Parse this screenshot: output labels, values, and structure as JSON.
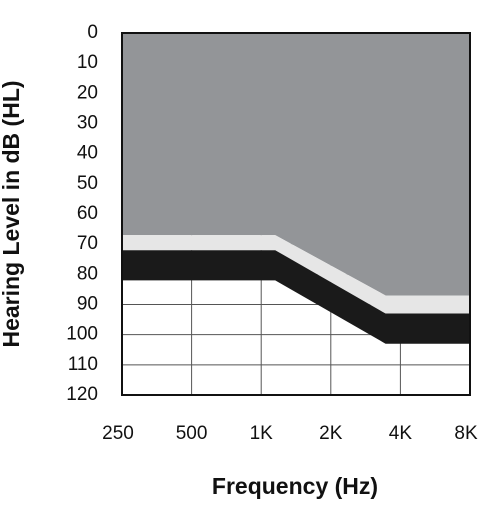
{
  "chart_data": {
    "type": "area",
    "x_label": "Frequency (Hz)",
    "y_label": "Hearing Level in dB (HL)",
    "x": [
      250,
      1150,
      3450,
      8000
    ],
    "xscale": "log",
    "xlim": [
      250,
      8000
    ],
    "xticks": [
      250,
      500,
      {
        "value": 1000,
        "label": "1K"
      },
      {
        "value": 2000,
        "label": "2K"
      },
      {
        "value": 4000,
        "label": "4K"
      },
      {
        "value": 8000,
        "label": "8K"
      }
    ],
    "ylim": [
      0,
      120
    ],
    "y_inverted": true,
    "yticks": [
      0,
      10,
      20,
      30,
      40,
      50,
      60,
      70,
      80,
      90,
      100,
      110,
      120
    ],
    "grid": true,
    "series": [
      {
        "color": "#939598",
        "values": [
          67,
          67,
          87,
          87
        ]
      },
      {
        "color": "#e6e6e6",
        "values": [
          72,
          72,
          93,
          93
        ]
      },
      {
        "color": "#1a1a1a",
        "values": [
          82,
          82,
          103,
          103
        ]
      }
    ]
  }
}
